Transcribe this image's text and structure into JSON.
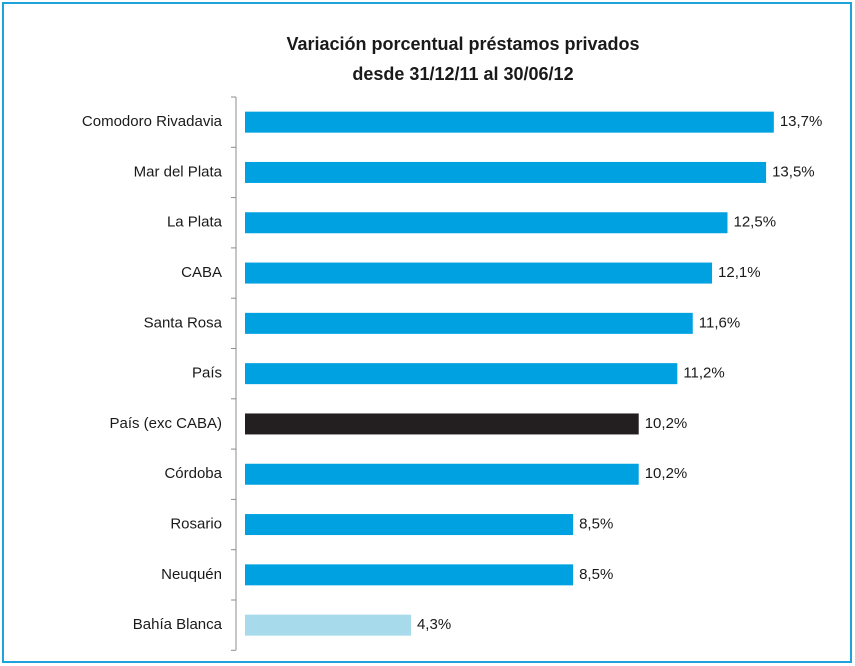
{
  "chart_data": {
    "type": "bar",
    "orientation": "horizontal",
    "title": [
      "Variación porcentual préstamos privados",
      "desde 31/12/11 al 30/06/12"
    ],
    "categories": [
      "Comodoro Rivadavia",
      "Mar del Plata",
      "La Plata",
      "CABA",
      "Santa Rosa",
      "País",
      "País (exc CABA)",
      "Córdoba",
      "Rosario",
      "Neuquén",
      "Bahía Blanca"
    ],
    "values": [
      13.7,
      13.5,
      12.5,
      12.1,
      11.6,
      11.2,
      10.2,
      10.2,
      8.5,
      8.5,
      4.3
    ],
    "value_labels": [
      "13,7%",
      "13,5%",
      "12,5%",
      "12,1%",
      "11,6%",
      "11,2%",
      "10,2%",
      "10,2%",
      "8,5%",
      "8,5%",
      "4,3%"
    ],
    "colors": [
      "#00a1e0",
      "#00a1e0",
      "#00a1e0",
      "#00a1e0",
      "#00a1e0",
      "#00a1e0",
      "#231f20",
      "#00a1e0",
      "#00a1e0",
      "#00a1e0",
      "#a7dbec"
    ]
  }
}
